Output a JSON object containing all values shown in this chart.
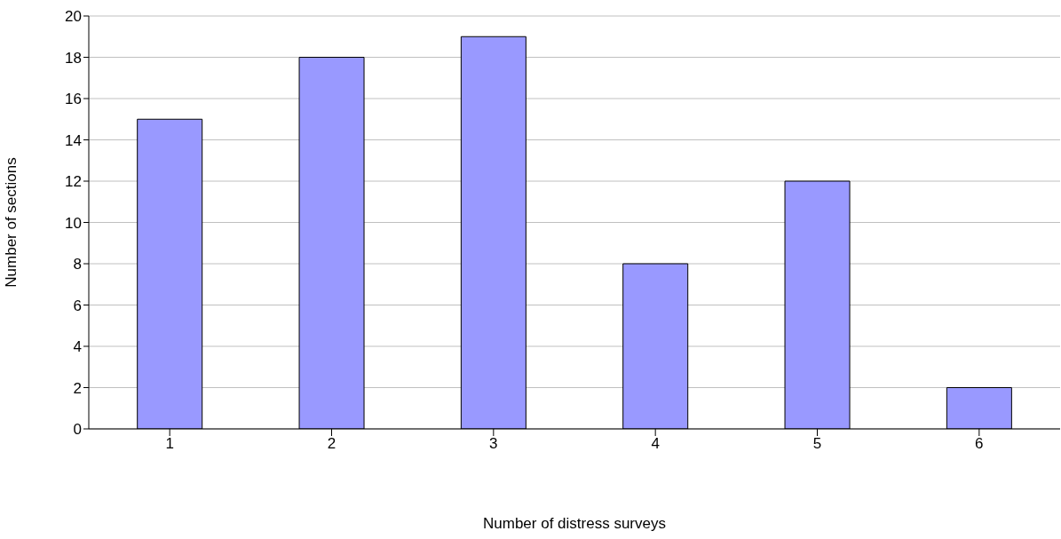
{
  "chart_data": {
    "type": "bar",
    "xlabel": "Number of distress surveys",
    "ylabel": "Number of sections",
    "categories": [
      "1",
      "2",
      "3",
      "4",
      "5",
      "6"
    ],
    "values": [
      15,
      18,
      19,
      8,
      12,
      2
    ],
    "color": "#9999ff",
    "ylim": [
      0,
      20
    ],
    "yticks": [
      0,
      2,
      4,
      6,
      8,
      10,
      12,
      14,
      16,
      18,
      20
    ],
    "grid": "y"
  }
}
